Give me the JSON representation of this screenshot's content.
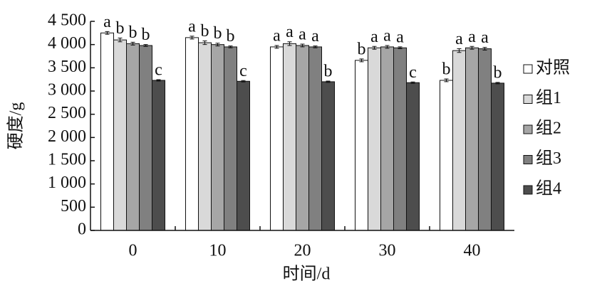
{
  "chart_data": {
    "type": "bar",
    "x_label": "时间/d",
    "y_label": "硬度/g",
    "categories": [
      "0",
      "10",
      "20",
      "30",
      "40"
    ],
    "series": [
      {
        "name": "对照",
        "color": "#ffffff",
        "values": [
          4250,
          4150,
          3950,
          3660,
          3230
        ],
        "errors": [
          30,
          30,
          30,
          30,
          30
        ],
        "letters": [
          "a",
          "a",
          "a",
          "b",
          "b"
        ]
      },
      {
        "name": "组1",
        "color": "#d9d9d9",
        "values": [
          4100,
          4040,
          4020,
          3930,
          3870
        ],
        "errors": [
          40,
          40,
          40,
          30,
          40
        ],
        "letters": [
          "b",
          "b",
          "a",
          "a",
          "a"
        ]
      },
      {
        "name": "组2",
        "color": "#a6a6a6",
        "values": [
          4020,
          4000,
          3980,
          3950,
          3930
        ],
        "errors": [
          30,
          30,
          30,
          30,
          30
        ],
        "letters": [
          "b",
          "b",
          "a",
          "a",
          "a"
        ]
      },
      {
        "name": "组3",
        "color": "#808080",
        "values": [
          3980,
          3950,
          3950,
          3930,
          3910
        ],
        "errors": [
          20,
          20,
          20,
          20,
          30
        ],
        "letters": [
          "b",
          "b",
          "a",
          "a",
          "a"
        ]
      },
      {
        "name": "组4",
        "color": "#4d4d4d",
        "values": [
          3230,
          3210,
          3200,
          3180,
          3170
        ],
        "errors": [
          15,
          15,
          15,
          15,
          15
        ],
        "letters": [
          "c",
          "c",
          "b",
          "c",
          "b"
        ]
      }
    ],
    "ylim": [
      0,
      4500
    ],
    "yticks": [
      0,
      500,
      {
        "value": 1000,
        "label": "1 000"
      },
      {
        "value": 1500,
        "label": "1 500"
      },
      {
        "value": 2000,
        "label": "2 000"
      },
      {
        "value": 2500,
        "label": "2 500"
      },
      {
        "value": 3000,
        "label": "3 000"
      },
      {
        "value": 3500,
        "label": "3 500"
      },
      {
        "value": 4000,
        "label": "4 000"
      },
      {
        "value": 4500,
        "label": "4 500"
      }
    ],
    "legend": "right"
  }
}
